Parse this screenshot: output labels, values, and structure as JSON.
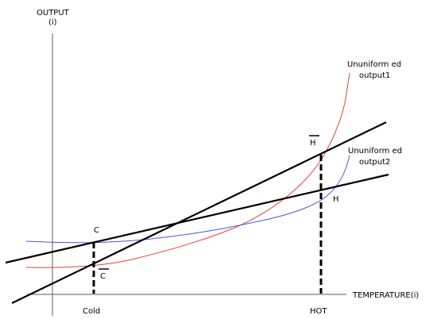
{
  "labels": {
    "y_axis_title_line1": "OUTPUT",
    "y_axis_title_line2": "(i)",
    "x_axis_title": "TEMPERATURE(i)",
    "curve1_line1": "Ununiform ed",
    "curve1_line2": "output1",
    "curve2_line1": "Ununiform ed",
    "curve2_line2": "output2",
    "point_c": "C",
    "point_c_bar": "C",
    "point_h": "H",
    "point_h_bar": "H",
    "x_tick_cold": "Cold",
    "x_tick_hot": "HOT"
  },
  "colors": {
    "axis": "#7a7a7a",
    "lines": "#000000",
    "output1": "#e4413f",
    "output2": "#4b57d6"
  }
}
